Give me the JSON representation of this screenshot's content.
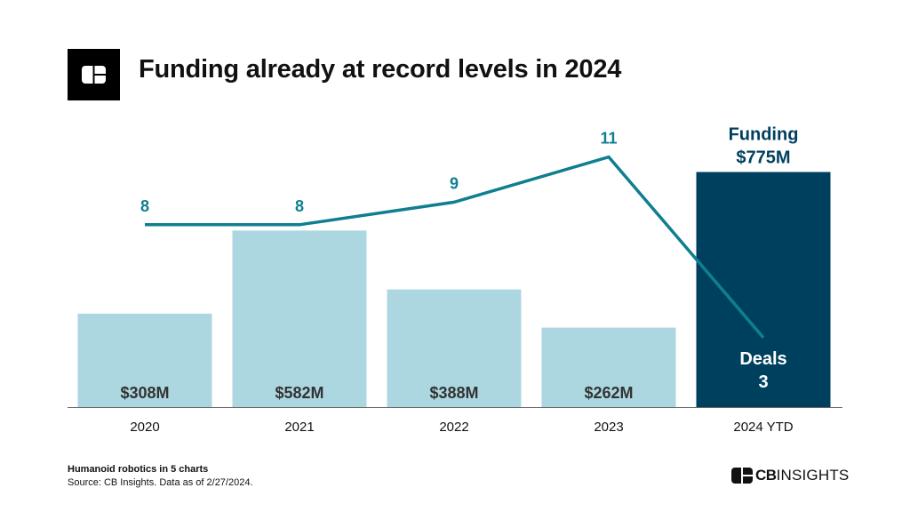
{
  "header": {
    "title": "Funding already at record levels in 2024",
    "logo_icon": "cb-logo-icon"
  },
  "chart_data": {
    "type": "bar",
    "categories": [
      "2020",
      "2021",
      "2022",
      "2023",
      "2024 YTD"
    ],
    "series": [
      {
        "name": "Funding",
        "values": [
          308,
          582,
          388,
          262,
          775
        ],
        "labels": [
          "$308M",
          "$582M",
          "$388M",
          "$262M",
          "$775M"
        ]
      },
      {
        "name": "Deals",
        "type": "line",
        "values": [
          8,
          8,
          9,
          11,
          3
        ],
        "labels": [
          "8",
          "8",
          "9",
          "11",
          "3"
        ]
      }
    ],
    "annotations": {
      "funding_label": "Funding",
      "deals_label": "Deals"
    },
    "colors": {
      "bar": "#acd7e0",
      "bar_highlight": "#00405f",
      "line": "#0f7f8f",
      "bar_label": "#333333"
    },
    "grid": false
  },
  "footer": {
    "title": "Humanoid robotics in 5 charts",
    "source": "Source: CB Insights. Data as of 2/27/2024."
  },
  "brand": {
    "bold": "CB",
    "regular": "INSIGHTS",
    "icon": "cb-logo-icon"
  }
}
